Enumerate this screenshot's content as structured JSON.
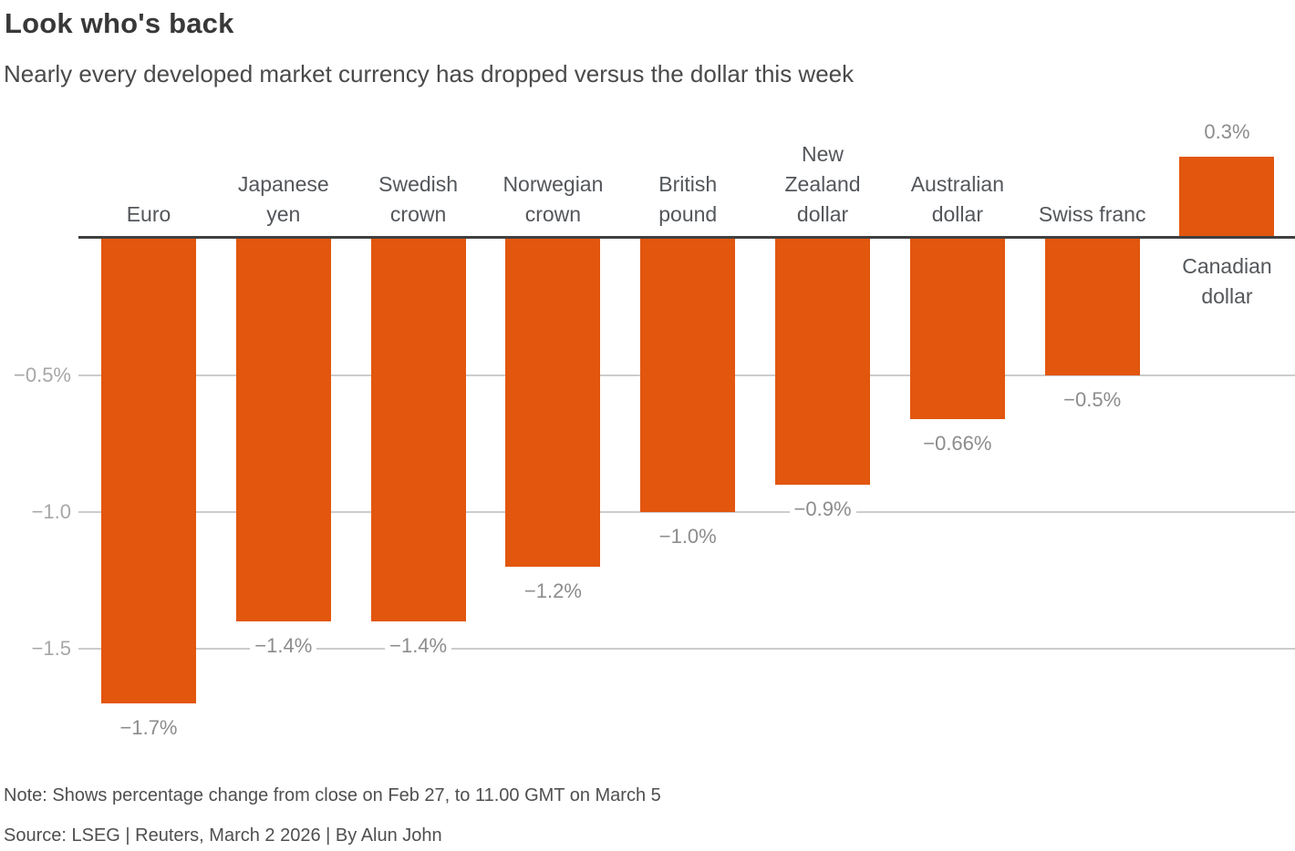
{
  "header": {
    "title": "Look who's back",
    "subtitle": "Nearly every developed market currency has dropped versus the dollar this week"
  },
  "chart_data": {
    "type": "bar",
    "title": "Look who's back",
    "subtitle": "Nearly every developed market currency has dropped versus the dollar this week",
    "categories": [
      "Euro",
      "Japanese yen",
      "Swedish crown",
      "Norwegian crown",
      "British pound",
      "New Zealand dollar",
      "Australian dollar",
      "Swiss franc",
      "Canadian dollar"
    ],
    "category_label_lines": [
      [
        "Euro"
      ],
      [
        "Japanese",
        "yen"
      ],
      [
        "Swedish",
        "crown"
      ],
      [
        "Norwegian",
        "crown"
      ],
      [
        "British",
        "pound"
      ],
      [
        "New",
        "Zealand",
        "dollar"
      ],
      [
        "Australian",
        "dollar"
      ],
      [
        "Swiss franc"
      ],
      [
        "Canadian",
        "dollar"
      ]
    ],
    "values": [
      -1.7,
      -1.4,
      -1.4,
      -1.2,
      -1.0,
      -0.9,
      -0.66,
      -0.5,
      0.3
    ],
    "value_labels": [
      "−1.7%",
      "−1.4%",
      "−1.4%",
      "−1.2%",
      "−1.0%",
      "−0.9%",
      "−0.66%",
      "−0.5%",
      "0.3%"
    ],
    "y_ticks": [
      {
        "label": "−0.5%",
        "value": -0.5
      },
      {
        "label": "−1.0",
        "value": -1.0
      },
      {
        "label": "−1.5",
        "value": -1.5
      }
    ],
    "ylim": [
      -1.75,
      0.35
    ],
    "xlabel": "",
    "ylabel": "",
    "unit": "%",
    "grid": true,
    "legend": false,
    "bar_color": "#e2560e",
    "grid_color": "#cccccc",
    "axis_color": "#404040",
    "tick_label_color": "#a7a7a7",
    "value_label_color": "#8c8c8c",
    "category_label_color": "#53565a"
  },
  "footer": {
    "note": "Note: Shows percentage change from close on Feb 27, to 11.00 GMT on March 5",
    "source": "Source: LSEG | Reuters, March 2 2026 | By Alun John"
  }
}
